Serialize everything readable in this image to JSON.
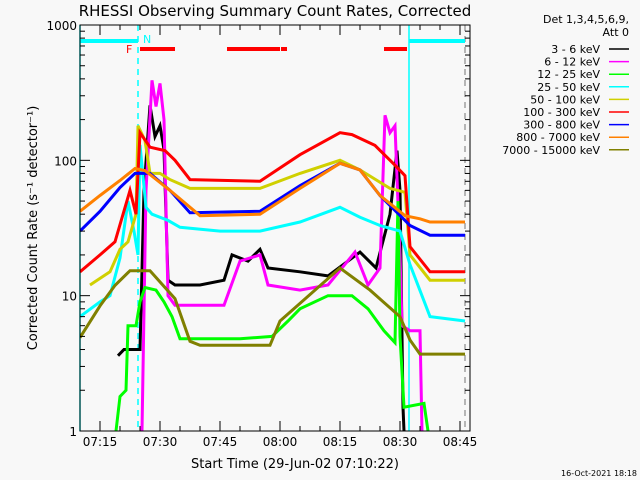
{
  "chart_data": {
    "type": "line",
    "title": "RHESSI Observing Summary Count Rates, Corrected",
    "xlabel": "Start Time (29-Jun-02 07:10:22)",
    "ylabel": "Corrected Count Rate (s⁻¹ detector⁻¹)",
    "y_scale": "log",
    "ylim": [
      1,
      1000
    ],
    "xlim": [
      "07:10:00",
      "08:47:30"
    ],
    "x_ticks": [
      "07:15",
      "07:30",
      "07:45",
      "08:00",
      "08:15",
      "08:30",
      "08:45"
    ],
    "y_ticks": [
      "1",
      "10",
      "100",
      "1000"
    ],
    "grid": false,
    "legend_position": "right",
    "legend_header": [
      "Det 1,3,4,5,6,9,",
      "Att 0"
    ],
    "timestamp": "16-Oct-2021 18:18",
    "annotations": {
      "night_label": "N",
      "flare_label": "F",
      "night_color": "#00ffff",
      "flare_color": "#ff0000",
      "night_intervals": [
        [
          "07:10:00",
          "07:24:30"
        ],
        [
          "08:32:15",
          "08:46:15"
        ]
      ],
      "flare_intervals": [
        [
          "07:25:00",
          "07:33:45"
        ],
        [
          "07:46:45",
          "08:00:00"
        ],
        [
          "08:00:15",
          "08:01:45"
        ],
        [
          "08:26:00",
          "08:31:45"
        ]
      ],
      "vlines": [
        {
          "time": "07:10:00",
          "color": "#00ffff",
          "style": "solid"
        },
        {
          "time": "07:24:30",
          "color": "#00ffff",
          "style": "dashed"
        },
        {
          "time": "08:32:15",
          "color": "#00ffff",
          "style": "solid"
        },
        {
          "time": "08:46:15",
          "color": "#a0a0a0",
          "style": "dashed"
        }
      ]
    },
    "series": [
      {
        "name": "3 - 6 keV",
        "color": "#000000",
        "points": [
          [
            "07:19:30",
            3.6
          ],
          [
            "07:21:00",
            4
          ],
          [
            "07:24:30",
            4
          ],
          [
            "07:25:00",
            4
          ],
          [
            "07:26:00",
            60
          ],
          [
            "07:27:30",
            255
          ],
          [
            "07:28:45",
            150
          ],
          [
            "07:30:00",
            180
          ],
          [
            "07:31:00",
            120
          ],
          [
            "07:32:00",
            13
          ],
          [
            "07:33:45",
            12
          ],
          [
            "07:40:00",
            12
          ],
          [
            "07:46:00",
            13
          ],
          [
            "07:48:00",
            20
          ],
          [
            "07:52:00",
            18
          ],
          [
            "07:55:00",
            22
          ],
          [
            "07:57:00",
            16
          ],
          [
            "08:05:00",
            15
          ],
          [
            "08:12:00",
            14
          ],
          [
            "08:17:00",
            18
          ],
          [
            "08:20:00",
            21
          ],
          [
            "08:24:00",
            16
          ],
          [
            "08:27:30",
            40
          ],
          [
            "08:29:15",
            118
          ],
          [
            "08:30:00",
            60
          ],
          [
            "08:30:45",
            1.5
          ],
          [
            "08:31:00",
            1
          ]
        ]
      },
      {
        "name": "6 - 12 keV",
        "color": "#ff00ff",
        "points": [
          [
            "07:25:30",
            1
          ],
          [
            "07:26:30",
            60
          ],
          [
            "07:28:00",
            390
          ],
          [
            "07:29:00",
            250
          ],
          [
            "07:30:00",
            370
          ],
          [
            "07:31:00",
            200
          ],
          [
            "07:32:00",
            10
          ],
          [
            "07:33:45",
            8.5
          ],
          [
            "07:46:00",
            8.5
          ],
          [
            "07:50:00",
            18
          ],
          [
            "07:55:00",
            20
          ],
          [
            "07:57:00",
            12
          ],
          [
            "08:05:00",
            11
          ],
          [
            "08:12:00",
            12
          ],
          [
            "08:18:45",
            21
          ],
          [
            "08:22:00",
            12
          ],
          [
            "08:25:00",
            16
          ],
          [
            "08:26:15",
            215
          ],
          [
            "08:27:30",
            160
          ],
          [
            "08:28:45",
            180
          ],
          [
            "08:30:00",
            20
          ],
          [
            "08:30:30",
            6
          ],
          [
            "08:32:30",
            5.5
          ],
          [
            "08:35:00",
            5.5
          ],
          [
            "08:35:30",
            1
          ]
        ]
      },
      {
        "name": "12 - 25 keV",
        "color": "#00ff00",
        "points": [
          [
            "07:19:00",
            1
          ],
          [
            "07:20:00",
            1.8
          ],
          [
            "07:21:30",
            2
          ],
          [
            "07:22:00",
            6
          ],
          [
            "07:24:00",
            6
          ],
          [
            "07:25:00",
            9
          ],
          [
            "07:26:15",
            11.5
          ],
          [
            "07:29:00",
            11
          ],
          [
            "07:31:00",
            9
          ],
          [
            "07:33:00",
            7
          ],
          [
            "07:35:00",
            4.8
          ],
          [
            "07:50:00",
            4.8
          ],
          [
            "07:58:00",
            5
          ],
          [
            "08:02:00",
            6.5
          ],
          [
            "08:05:00",
            8
          ],
          [
            "08:12:00",
            10
          ],
          [
            "08:18:00",
            10
          ],
          [
            "08:22:00",
            8
          ],
          [
            "08:26:00",
            5.5
          ],
          [
            "08:28:45",
            4.5
          ],
          [
            "08:29:30",
            50
          ],
          [
            "08:30:00",
            5
          ],
          [
            "08:31:00",
            1.5
          ],
          [
            "08:36:00",
            1.6
          ],
          [
            "08:37:00",
            1
          ]
        ]
      },
      {
        "name": "25 - 50 keV",
        "color": "#00ffff",
        "points": [
          [
            "07:10:00",
            7
          ],
          [
            "07:15:00",
            9
          ],
          [
            "07:17:30",
            10
          ],
          [
            "07:20:00",
            19
          ],
          [
            "07:22:00",
            50
          ],
          [
            "07:23:30",
            30
          ],
          [
            "07:24:30",
            20
          ],
          [
            "07:25:00",
            130
          ],
          [
            "07:26:30",
            45
          ],
          [
            "07:28:00",
            40
          ],
          [
            "07:32:00",
            36
          ],
          [
            "07:35:00",
            32
          ],
          [
            "07:45:00",
            30
          ],
          [
            "07:55:00",
            30
          ],
          [
            "08:05:00",
            35
          ],
          [
            "08:15:00",
            45
          ],
          [
            "08:20:00",
            38
          ],
          [
            "08:25:00",
            33
          ],
          [
            "08:30:00",
            30
          ],
          [
            "08:32:30",
            17
          ],
          [
            "08:37:30",
            7
          ],
          [
            "08:46:15",
            6.5
          ]
        ]
      },
      {
        "name": "50 - 100 keV",
        "color": "#d0d000",
        "points": [
          [
            "07:12:30",
            12
          ],
          [
            "07:17:30",
            15
          ],
          [
            "07:20:00",
            22
          ],
          [
            "07:22:00",
            25
          ],
          [
            "07:24:00",
            40
          ],
          [
            "07:24:30",
            180
          ],
          [
            "07:26:15",
            140
          ],
          [
            "07:27:30",
            80
          ],
          [
            "07:30:00",
            80
          ],
          [
            "07:32:30",
            72
          ],
          [
            "07:37:30",
            62
          ],
          [
            "07:55:00",
            62
          ],
          [
            "08:05:00",
            80
          ],
          [
            "08:15:00",
            100
          ],
          [
            "08:20:00",
            85
          ],
          [
            "08:27:30",
            62
          ],
          [
            "08:31:15",
            58
          ],
          [
            "08:32:30",
            20
          ],
          [
            "08:37:30",
            13
          ],
          [
            "08:46:15",
            13
          ]
        ]
      },
      {
        "name": "100 - 300 keV",
        "color": "#ff0000",
        "points": [
          [
            "07:10:00",
            15
          ],
          [
            "07:15:00",
            20
          ],
          [
            "07:18:45",
            25
          ],
          [
            "07:22:30",
            60
          ],
          [
            "07:24:00",
            40
          ],
          [
            "07:25:00",
            160
          ],
          [
            "07:27:30",
            125
          ],
          [
            "07:31:15",
            118
          ],
          [
            "07:33:45",
            100
          ],
          [
            "07:37:30",
            72
          ],
          [
            "07:55:00",
            70
          ],
          [
            "08:05:00",
            110
          ],
          [
            "08:15:00",
            160
          ],
          [
            "08:18:00",
            155
          ],
          [
            "08:23:45",
            129
          ],
          [
            "08:28:45",
            92
          ],
          [
            "08:31:15",
            77
          ],
          [
            "08:32:30",
            23
          ],
          [
            "08:37:30",
            15
          ],
          [
            "08:46:15",
            15
          ]
        ]
      },
      {
        "name": "300 - 800 keV",
        "color": "#0000ff",
        "points": [
          [
            "07:10:00",
            30
          ],
          [
            "07:15:00",
            42
          ],
          [
            "07:20:00",
            63
          ],
          [
            "07:23:45",
            80
          ],
          [
            "07:27:30",
            80
          ],
          [
            "07:32:30",
            60
          ],
          [
            "07:37:30",
            41
          ],
          [
            "07:55:00",
            42
          ],
          [
            "08:05:00",
            65
          ],
          [
            "08:15:00",
            95
          ],
          [
            "08:20:00",
            85
          ],
          [
            "08:25:00",
            55
          ],
          [
            "08:31:15",
            36
          ],
          [
            "08:32:30",
            33
          ],
          [
            "08:37:30",
            28
          ],
          [
            "08:46:15",
            28
          ]
        ]
      },
      {
        "name": "800 - 7000 keV",
        "color": "#ff8000",
        "points": [
          [
            "07:10:00",
            42
          ],
          [
            "07:15:00",
            55
          ],
          [
            "07:20:00",
            71
          ],
          [
            "07:23:45",
            87
          ],
          [
            "07:26:15",
            84
          ],
          [
            "07:32:30",
            60
          ],
          [
            "07:40:00",
            39
          ],
          [
            "07:55:00",
            40
          ],
          [
            "08:05:00",
            62
          ],
          [
            "08:15:00",
            95
          ],
          [
            "08:20:00",
            85
          ],
          [
            "08:25:00",
            55
          ],
          [
            "08:31:15",
            39
          ],
          [
            "08:35:00",
            37
          ],
          [
            "08:37:30",
            35
          ],
          [
            "08:46:15",
            35
          ]
        ]
      },
      {
        "name": "7000 - 15000 keV",
        "color": "#808000",
        "points": [
          [
            "07:10:00",
            4.9
          ],
          [
            "07:15:00",
            8.4
          ],
          [
            "07:18:45",
            11.9
          ],
          [
            "07:22:30",
            15.3
          ],
          [
            "07:27:30",
            15.3
          ],
          [
            "07:33:45",
            9.5
          ],
          [
            "07:37:30",
            4.6
          ],
          [
            "07:40:00",
            4.3
          ],
          [
            "07:57:30",
            4.3
          ],
          [
            "08:00:00",
            6.5
          ],
          [
            "08:15:00",
            16
          ],
          [
            "08:22:30",
            11
          ],
          [
            "08:30:00",
            7
          ],
          [
            "08:32:30",
            4.7
          ],
          [
            "08:35:00",
            3.7
          ],
          [
            "08:46:15",
            3.7
          ]
        ]
      }
    ]
  }
}
